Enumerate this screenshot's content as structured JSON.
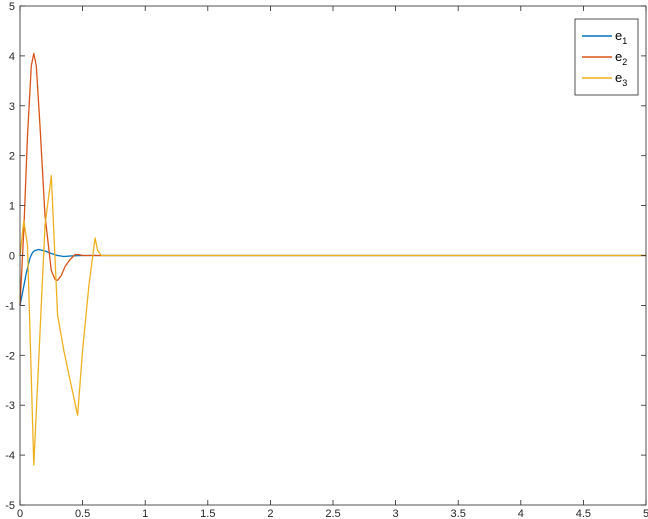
{
  "chart_data": {
    "type": "line",
    "title": "",
    "xlabel": "",
    "ylabel": "",
    "xlim": [
      0,
      5
    ],
    "ylim": [
      -5,
      5
    ],
    "grid": false,
    "legend_position": "top-right",
    "x_ticks": [
      0,
      0.5,
      1,
      1.5,
      2,
      2.5,
      3,
      3.5,
      4,
      4.5,
      5
    ],
    "x_tick_labels": [
      "0",
      "0.5",
      "1",
      "1.5",
      "2",
      "2.5",
      "3",
      "3.5",
      "4",
      "4.5",
      "5"
    ],
    "y_ticks": [
      -5,
      -4,
      -3,
      -2,
      -1,
      0,
      1,
      2,
      3,
      4,
      5
    ],
    "y_tick_labels": [
      "-5",
      "-4",
      "-3",
      "-2",
      "-1",
      "0",
      "1",
      "2",
      "3",
      "4",
      "5"
    ],
    "series": [
      {
        "name": "e1",
        "legend_base": "e",
        "legend_sub": "1",
        "color": "#0072BD",
        "x": [
          0,
          0.02,
          0.05,
          0.08,
          0.1,
          0.12,
          0.15,
          0.2,
          0.25,
          0.3,
          0.35,
          0.4,
          0.5,
          0.6,
          1,
          5
        ],
        "y": [
          -1,
          -0.75,
          -0.35,
          -0.05,
          0.06,
          0.1,
          0.12,
          0.09,
          0.04,
          0.0,
          -0.02,
          -0.01,
          0,
          0,
          0,
          0
        ]
      },
      {
        "name": "e2",
        "legend_base": "e",
        "legend_sub": "2",
        "color": "#D95319",
        "x": [
          0,
          0.03,
          0.06,
          0.09,
          0.11,
          0.13,
          0.16,
          0.2,
          0.25,
          0.28,
          0.3,
          0.33,
          0.36,
          0.4,
          0.44,
          0.47,
          0.5,
          0.6,
          1,
          5
        ],
        "y": [
          -1,
          0.5,
          2.4,
          3.8,
          4.05,
          3.8,
          2.6,
          0.8,
          -0.3,
          -0.48,
          -0.5,
          -0.4,
          -0.22,
          -0.08,
          0.02,
          0.02,
          0,
          0,
          0,
          0
        ]
      },
      {
        "name": "e3",
        "legend_base": "e",
        "legend_sub": "3",
        "color": "#EDB120",
        "x": [
          0,
          0.03,
          0.06,
          0.11,
          0.2,
          0.25,
          0.3,
          0.35,
          0.4,
          0.46,
          0.5,
          0.55,
          0.6,
          0.62,
          0.65,
          0.7,
          1,
          5
        ],
        "y": [
          0,
          0.7,
          0.2,
          -4.2,
          0.6,
          1.6,
          -1.2,
          -1.9,
          -2.5,
          -3.2,
          -1.9,
          -0.6,
          0.35,
          0.1,
          0,
          0,
          0,
          0
        ]
      }
    ]
  }
}
